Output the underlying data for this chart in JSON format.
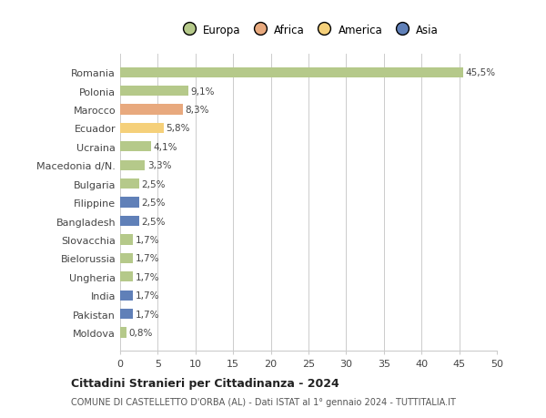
{
  "countries": [
    "Romania",
    "Polonia",
    "Marocco",
    "Ecuador",
    "Ucraina",
    "Macedonia d/N.",
    "Bulgaria",
    "Filippine",
    "Bangladesh",
    "Slovacchia",
    "Bielorussia",
    "Ungheria",
    "India",
    "Pakistan",
    "Moldova"
  ],
  "values": [
    45.5,
    9.1,
    8.3,
    5.8,
    4.1,
    3.3,
    2.5,
    2.5,
    2.5,
    1.7,
    1.7,
    1.7,
    1.7,
    1.7,
    0.8
  ],
  "labels": [
    "45,5%",
    "9,1%",
    "8,3%",
    "5,8%",
    "4,1%",
    "3,3%",
    "2,5%",
    "2,5%",
    "2,5%",
    "1,7%",
    "1,7%",
    "1,7%",
    "1,7%",
    "1,7%",
    "0,8%"
  ],
  "colors": [
    "#b5c98a",
    "#b5c98a",
    "#e8a97e",
    "#f5d07a",
    "#b5c98a",
    "#b5c98a",
    "#b5c98a",
    "#7a9fc4",
    "#7a9fc4",
    "#b5c98a",
    "#b5c98a",
    "#b5c98a",
    "#7a9fc4",
    "#7a9fc4",
    "#b5c98a"
  ],
  "legend_labels": [
    "Europa",
    "Africa",
    "America",
    "Asia"
  ],
  "legend_colors": [
    "#b5c98a",
    "#e8a97e",
    "#f5d07a",
    "#6080b8"
  ],
  "xlim": [
    0,
    50
  ],
  "xticks": [
    0,
    5,
    10,
    15,
    20,
    25,
    30,
    35,
    40,
    45,
    50
  ],
  "title": "Cittadini Stranieri per Cittadinanza - 2024",
  "subtitle": "COMUNE DI CASTELLETTO D'ORBA (AL) - Dati ISTAT al 1° gennaio 2024 - TUTTITALIA.IT",
  "bg_color": "#ffffff",
  "grid_color": "#cccccc",
  "asia_color": "#6080b8"
}
